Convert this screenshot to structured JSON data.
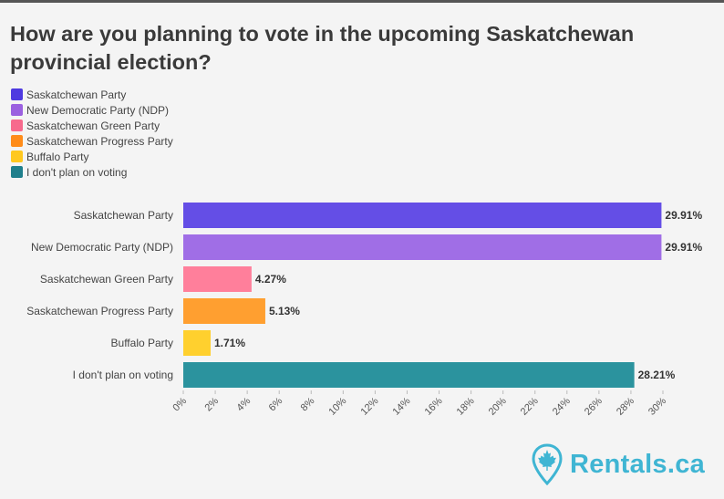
{
  "title": "How are you planning to vote in the upcoming Saskatchewan provincial election?",
  "brand": {
    "name": "Rentals.ca",
    "icon": "maple-leaf-pin-icon",
    "color": "#3fb5d3"
  },
  "chart_data": {
    "type": "bar",
    "orientation": "horizontal",
    "title": "How are you planning to vote in the upcoming Saskatchewan provincial election?",
    "categories": [
      "Saskatchewan Party",
      "New Democratic Party (NDP)",
      "Saskatchewan Green Party",
      "Saskatchewan Progress Party",
      "Buffalo Party",
      "I don't plan on voting"
    ],
    "values": [
      29.91,
      29.91,
      4.27,
      5.13,
      1.71,
      28.21
    ],
    "value_labels": [
      "29.91%",
      "29.91%",
      "4.27%",
      "5.13%",
      "1.71%",
      "28.21%"
    ],
    "colors": [
      "#644ee6",
      "#a06ee6",
      "#ff7f9b",
      "#ff9f30",
      "#ffd02e",
      "#2b939e"
    ],
    "xlim": [
      0,
      30
    ],
    "xticks": [
      0,
      2,
      4,
      6,
      8,
      10,
      12,
      14,
      16,
      18,
      20,
      22,
      24,
      26,
      28,
      30
    ],
    "xtick_labels": [
      "0%",
      "2%",
      "4%",
      "6%",
      "8%",
      "10%",
      "12%",
      "14%",
      "16%",
      "18%",
      "20%",
      "22%",
      "24%",
      "26%",
      "28%",
      "30%"
    ],
    "legend": {
      "placement": "top-left",
      "entries": [
        {
          "label": "Saskatchewan Party",
          "color": "#4e3ae0"
        },
        {
          "label": "New Democratic Party (NDP)",
          "color": "#9b60e0"
        },
        {
          "label": "Saskatchewan Green Party",
          "color": "#f76a8d"
        },
        {
          "label": "Saskatchewan Progress Party",
          "color": "#ff8c1a"
        },
        {
          "label": "Buffalo Party",
          "color": "#ffc81f"
        },
        {
          "label": "I don't plan on voting",
          "color": "#1f7f8c"
        }
      ]
    },
    "grid": false
  }
}
